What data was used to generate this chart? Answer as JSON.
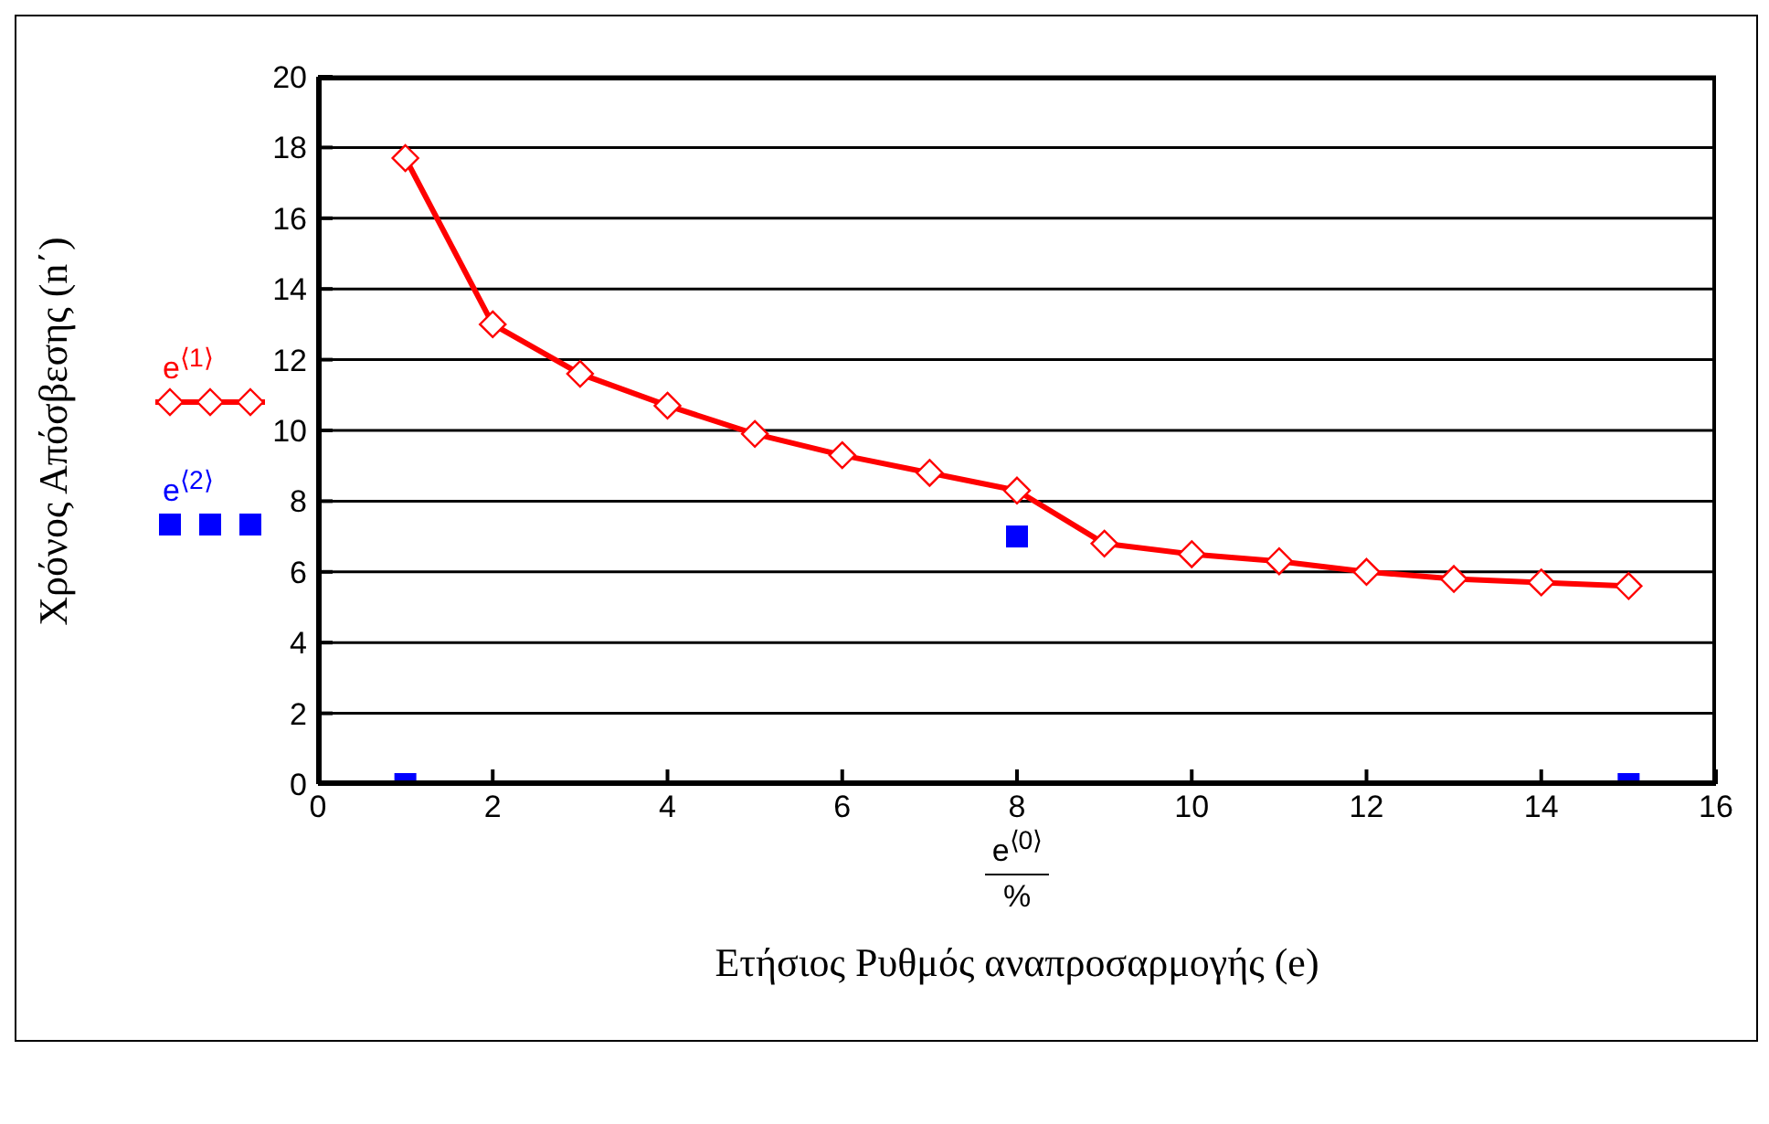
{
  "chart_data": {
    "type": "line",
    "xlabel": "Ετήσιος Ρυθμός αναπροσαρμογής (e)",
    "ylabel": "Χρόνος Απόσβεσης (n΄)",
    "annotations": [
      "e$^{⟨0⟩}$",
      "%"
    ],
    "xlim": [
      0,
      16
    ],
    "xticks": [
      0,
      2,
      4,
      6,
      8,
      10,
      12,
      14,
      16
    ],
    "ylim": [
      0,
      20
    ],
    "yticks": [
      0,
      2,
      4,
      6,
      8,
      10,
      12,
      14,
      16,
      18,
      20
    ],
    "grid": "y",
    "legend": "left",
    "series": [
      {
        "name": "e$^{⟨1⟩}$",
        "color": "#ff0000",
        "marker": "diamond",
        "line_style": "solid",
        "x": [
          1,
          2,
          3,
          4,
          5,
          6,
          7,
          8,
          9,
          10,
          11,
          12,
          13,
          14,
          15
        ],
        "values": [
          17.7,
          13.0,
          11.6,
          10.7,
          9.9,
          9.3,
          8.8,
          8.3,
          6.8,
          6.5,
          6.3,
          6.0,
          5.8,
          5.7,
          5.6
        ]
      },
      {
        "name": "e$^{⟨2⟩}$",
        "type": "scatter",
        "color": "#0000ff",
        "marker": "square",
        "x": [
          1,
          8,
          15
        ],
        "values": [
          0,
          7,
          0
        ]
      }
    ]
  }
}
